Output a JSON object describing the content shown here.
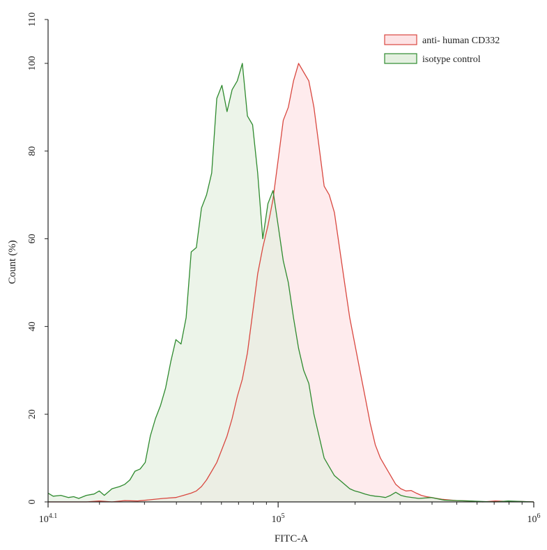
{
  "chart_data": {
    "type": "area",
    "xlabel": "FITC-A",
    "ylabel": "Count (%)",
    "x_scale": "log10",
    "xlim": [
      4.1,
      6
    ],
    "ylim": [
      0,
      110
    ],
    "x_ticks": [
      {
        "value": 4.1,
        "base": "10",
        "exp": "4.1"
      },
      {
        "value": 5,
        "base": "10",
        "exp": "5"
      },
      {
        "value": 6,
        "base": "10",
        "exp": "6"
      }
    ],
    "y_ticks": [
      0,
      20,
      40,
      60,
      80,
      100,
      110
    ],
    "grid": false,
    "legend_position": "top-right",
    "series": [
      {
        "name": "anti- human CD332",
        "line_color": "#d9473f",
        "fill_color": "#fde3e5",
        "x": [
          4.1,
          4.15,
          4.2,
          4.25,
          4.3,
          4.35,
          4.4,
          4.45,
          4.5,
          4.55,
          4.6,
          4.63,
          4.66,
          4.68,
          4.7,
          4.72,
          4.74,
          4.76,
          4.78,
          4.8,
          4.82,
          4.84,
          4.86,
          4.88,
          4.9,
          4.92,
          4.94,
          4.96,
          4.98,
          5.0,
          5.02,
          5.04,
          5.06,
          5.08,
          5.1,
          5.12,
          5.14,
          5.16,
          5.18,
          5.2,
          5.22,
          5.24,
          5.26,
          5.28,
          5.3,
          5.32,
          5.34,
          5.36,
          5.38,
          5.4,
          5.42,
          5.44,
          5.46,
          5.48,
          5.5,
          5.52,
          5.54,
          5.56,
          5.58,
          5.6,
          5.62,
          5.64,
          5.66,
          5.68,
          5.7,
          5.75,
          5.8,
          5.85,
          5.9,
          5.95,
          6.0
        ],
        "y": [
          0,
          0,
          0,
          0,
          0.2,
          0,
          0.3,
          0.2,
          0.5,
          0.8,
          1,
          1.5,
          2,
          2.5,
          3.5,
          5,
          7,
          9,
          12,
          15,
          19,
          24,
          28,
          34,
          43,
          52,
          58,
          63,
          69,
          78,
          87,
          90,
          96,
          100,
          98,
          96,
          90,
          81,
          72,
          70,
          66,
          58,
          50,
          42,
          36,
          30,
          24,
          18,
          13,
          10,
          8,
          6,
          4,
          3,
          2.5,
          2.6,
          2,
          1.5,
          1.2,
          1,
          0.8,
          0.6,
          0.5,
          0.4,
          0.3,
          0.2,
          0,
          0.2,
          0.1,
          0.1,
          0
        ]
      },
      {
        "name": "isotype control",
        "line_color": "#2e8a2e",
        "fill_color": "#e4f0e0",
        "x": [
          4.1,
          4.12,
          4.15,
          4.18,
          4.2,
          4.22,
          4.25,
          4.28,
          4.3,
          4.32,
          4.35,
          4.38,
          4.4,
          4.42,
          4.44,
          4.46,
          4.48,
          4.5,
          4.52,
          4.54,
          4.56,
          4.58,
          4.6,
          4.62,
          4.64,
          4.66,
          4.68,
          4.7,
          4.72,
          4.74,
          4.76,
          4.78,
          4.8,
          4.82,
          4.84,
          4.86,
          4.88,
          4.9,
          4.92,
          4.94,
          4.96,
          4.98,
          5.0,
          5.02,
          5.04,
          5.06,
          5.08,
          5.1,
          5.12,
          5.14,
          5.16,
          5.18,
          5.2,
          5.22,
          5.24,
          5.26,
          5.28,
          5.3,
          5.32,
          5.34,
          5.36,
          5.38,
          5.4,
          5.42,
          5.44,
          5.46,
          5.48,
          5.5,
          5.55,
          5.6,
          5.65,
          5.7,
          5.75,
          5.8,
          5.85,
          5.9,
          6.0
        ],
        "y": [
          2,
          1.3,
          1.5,
          1,
          1.2,
          0.8,
          1.5,
          1.8,
          2.5,
          1.5,
          3,
          3.5,
          4,
          5,
          7,
          7.5,
          9,
          15,
          19,
          22,
          26,
          32,
          37,
          36,
          42,
          57,
          58,
          67,
          70,
          75,
          92,
          95,
          89,
          94,
          96,
          100,
          88,
          86,
          75,
          60,
          68,
          71,
          63,
          55,
          50,
          42,
          35,
          30,
          27,
          20,
          15,
          10,
          8,
          6,
          5,
          4,
          3,
          2.5,
          2.2,
          1.8,
          1.5,
          1.3,
          1.2,
          1,
          1.5,
          2.2,
          1.5,
          1.2,
          0.8,
          1,
          0.4,
          0.3,
          0.2,
          0.1,
          0,
          0.2,
          0
        ]
      }
    ]
  }
}
